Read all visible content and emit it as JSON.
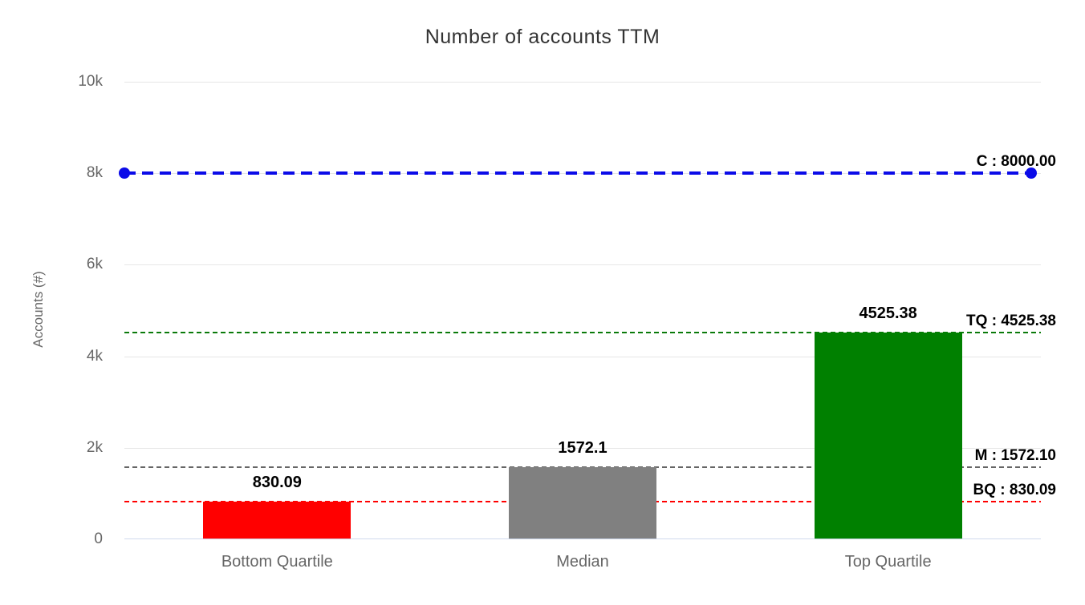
{
  "chart_data": {
    "type": "bar",
    "title": "Number of accounts TTM",
    "xlabel": "",
    "ylabel": "Accounts (#)",
    "categories": [
      "Bottom Quartile",
      "Median",
      "Top Quartile"
    ],
    "values": [
      830.09,
      1572.1,
      4525.38
    ],
    "value_labels": [
      "830.09",
      "1572.1",
      "4525.38"
    ],
    "bar_colors": [
      "#ff0000",
      "#808080",
      "#008000"
    ],
    "ylim": [
      0,
      10000
    ],
    "yticks": [
      {
        "value": 0,
        "label": "0"
      },
      {
        "value": 2000,
        "label": "2k"
      },
      {
        "value": 4000,
        "label": "4k"
      },
      {
        "value": 6000,
        "label": "6k"
      },
      {
        "value": 8000,
        "label": "8k"
      },
      {
        "value": 10000,
        "label": "10k"
      }
    ],
    "grid": true,
    "legend": "none",
    "reference_lines": [
      {
        "id": "C",
        "label": "C : 8000.00",
        "value": 8000,
        "color": "#0b0be8",
        "thickness": 4,
        "end_markers": true
      },
      {
        "id": "TQ",
        "label": "TQ : 4525.38",
        "value": 4525.38,
        "color": "#0a7a0a",
        "thickness": 2,
        "end_markers": false
      },
      {
        "id": "M",
        "label": "M : 1572.10",
        "value": 1572.1,
        "color": "#666666",
        "thickness": 2,
        "end_markers": false
      },
      {
        "id": "BQ",
        "label": "BQ : 830.09",
        "value": 830.09,
        "color": "#ff0000",
        "thickness": 2,
        "end_markers": false
      }
    ],
    "colors": {
      "background": "#ffffff",
      "grid": "#e6e6e6",
      "axis_line": "#ccd6eb",
      "tick_text": "#666666",
      "title_text": "#333333",
      "value_label_text": "#000000"
    }
  }
}
